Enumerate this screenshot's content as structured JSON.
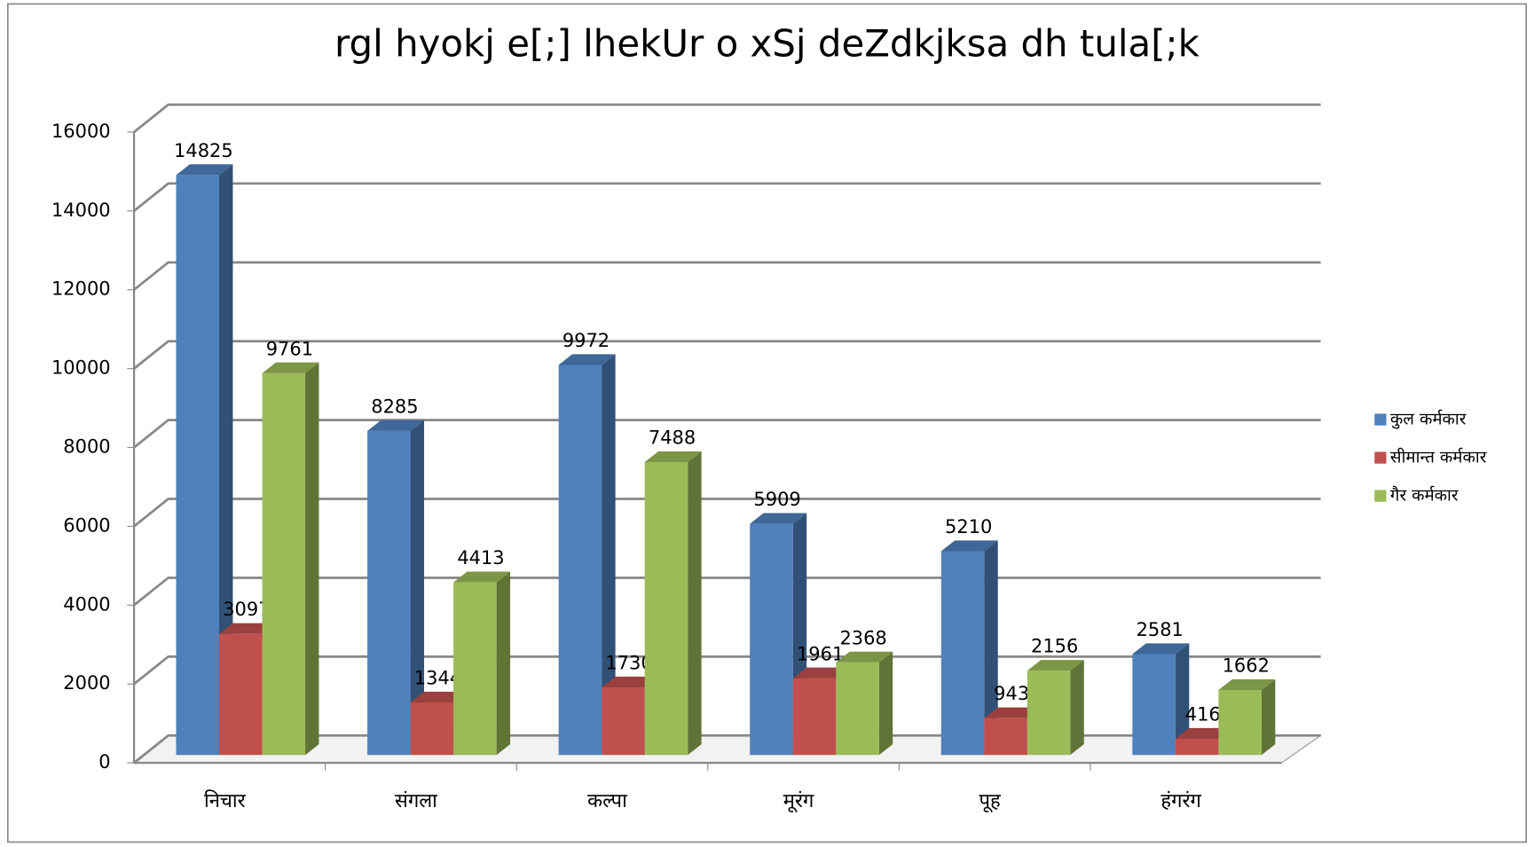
{
  "chart_data": {
    "type": "bar",
    "title": "rgl hyokj e[;] lhekUr o xSj deZdkjksa dh tula[;k",
    "categories": [
      "निचार",
      "संगला",
      "कल्पा",
      "मूरंग",
      "पूह",
      "हंगरंग"
    ],
    "series": [
      {
        "name": "कुल कर्मकार",
        "color": "#4f81bd",
        "values": [
          14825,
          8285,
          9972,
          5909,
          5210,
          2581
        ]
      },
      {
        "name": "सीमान्त कर्मकार",
        "color": "#c0504d",
        "values": [
          3097,
          1344,
          1730,
          1961,
          943,
          416
        ]
      },
      {
        "name": "गैर कर्मकार",
        "color": "#9bbb59",
        "values": [
          9761,
          4413,
          7488,
          2368,
          2156,
          1662
        ]
      }
    ],
    "ylim": [
      0,
      16000
    ],
    "yticks": [
      0,
      2000,
      4000,
      6000,
      8000,
      10000,
      12000,
      14000,
      16000
    ],
    "grid": true,
    "legend": "right"
  }
}
